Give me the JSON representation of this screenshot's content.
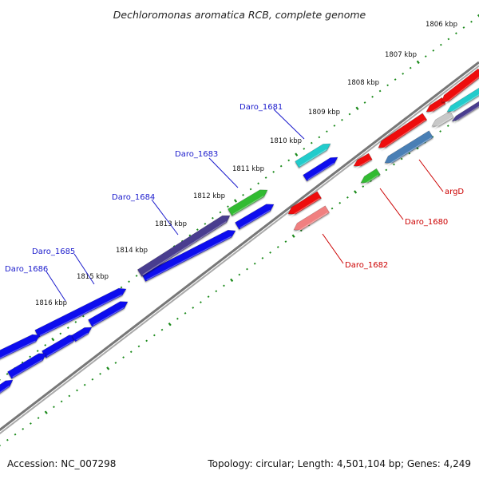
{
  "title": "Dechloromonas aromatica RCB, complete genome",
  "footer": {
    "accession": "Accession: NC_007298",
    "topology": "Topology: circular; Length: 4,501,104 bp; Genes: 4,249"
  },
  "ticks": [
    {
      "kbp": 1806,
      "label": "1806 kbp"
    },
    {
      "kbp": 1807,
      "label": "1807 kbp"
    },
    {
      "kbp": 1808,
      "label": "1808 kbp"
    },
    {
      "kbp": 1809,
      "label": "1809 kbp"
    },
    {
      "kbp": 1810,
      "label": "1810 kbp"
    },
    {
      "kbp": 1811,
      "label": "1811 kbp"
    },
    {
      "kbp": 1812,
      "label": "1812 kbp"
    },
    {
      "kbp": 1813,
      "label": "1813 kbp"
    },
    {
      "kbp": 1814,
      "label": "1814 kbp"
    },
    {
      "kbp": 1815,
      "label": "1815 kbp"
    },
    {
      "kbp": 1816,
      "label": "1816 kbp"
    }
  ],
  "gene_labels": [
    {
      "text": "Daro_1681",
      "strand": "forward"
    },
    {
      "text": "Daro_1683",
      "strand": "forward"
    },
    {
      "text": "Daro_1684",
      "strand": "forward"
    },
    {
      "text": "Daro_1685",
      "strand": "forward"
    },
    {
      "text": "Daro_1686",
      "strand": "forward"
    },
    {
      "text": "argD",
      "strand": "reverse"
    },
    {
      "text": "Daro_1680",
      "strand": "reverse"
    },
    {
      "text": "Daro_1682",
      "strand": "reverse"
    }
  ],
  "colors": {
    "backbone": "#8c8c8c",
    "tick": "#1a8a1a",
    "forward_label": "#1a1acc",
    "reverse_label": "#cc0000",
    "gene_blue": "#1010ee",
    "gene_red": "#ee1111",
    "gene_green": "#33bb33",
    "gene_cyan": "#22cccc",
    "gene_purple": "#4a3d8f",
    "gene_steel": "#4a7fb5",
    "gene_pink": "#f08080",
    "gene_grey": "#c8c8c8"
  }
}
